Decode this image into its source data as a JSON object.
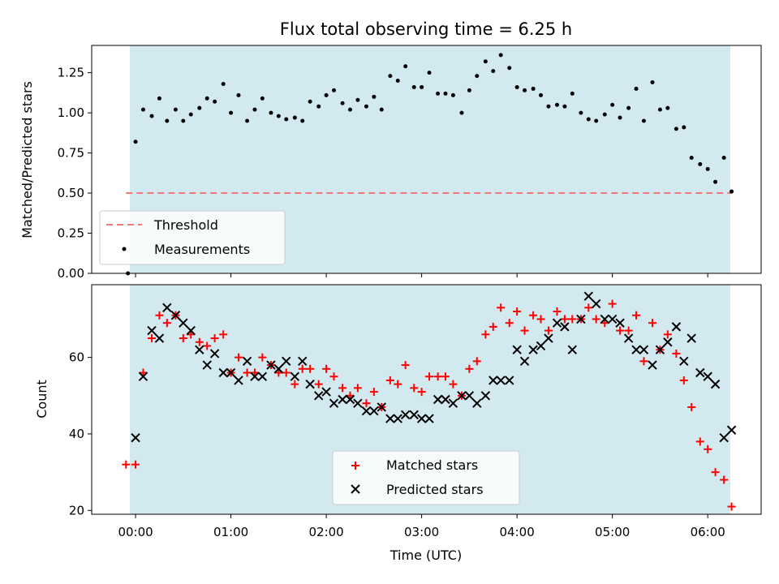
{
  "colors": {
    "observing_band": "#d3e9f0",
    "threshold": "#f07a7a",
    "measurements": "#000000",
    "matched": "#ff0000",
    "predicted": "#000000"
  },
  "chart_data": [
    {
      "type": "scatter",
      "title": "Flux total observing time = 6.25 h",
      "xlabel": "",
      "ylabel": "Matched/Predicted stars",
      "x_unit": "hours since 00:00 UTC",
      "xlim": [
        -0.46,
        6.56
      ],
      "ylim": [
        0,
        1.42
      ],
      "y_ticks": [
        "0.00",
        "0.25",
        "0.50",
        "0.75",
        "1.00",
        "1.25"
      ],
      "observing_band": [
        0.0,
        6.25
      ],
      "legend": {
        "location": "lower left",
        "entries": [
          "Threshold",
          "Measurements"
        ]
      },
      "threshold": {
        "name": "Threshold",
        "y": 0.5,
        "x": [
          -0.1,
          6.25
        ],
        "style": "dashed"
      },
      "series": [
        {
          "name": "Measurements",
          "marker": "dot",
          "x": [
            -0.08,
            0.0,
            0.08,
            0.17,
            0.25,
            0.33,
            0.42,
            0.5,
            0.58,
            0.67,
            0.75,
            0.83,
            0.92,
            1.0,
            1.08,
            1.17,
            1.25,
            1.33,
            1.42,
            1.5,
            1.58,
            1.67,
            1.75,
            1.83,
            1.92,
            2.0,
            2.08,
            2.17,
            2.25,
            2.33,
            2.42,
            2.5,
            2.58,
            2.67,
            2.75,
            2.83,
            2.92,
            3.0,
            3.08,
            3.17,
            3.25,
            3.33,
            3.42,
            3.5,
            3.58,
            3.67,
            3.75,
            3.83,
            3.92,
            4.0,
            4.08,
            4.17,
            4.25,
            4.33,
            4.42,
            4.5,
            4.58,
            4.67,
            4.75,
            4.83,
            4.92,
            5.0,
            5.08,
            5.17,
            5.25,
            5.33,
            5.42,
            5.5,
            5.58,
            5.67,
            5.75,
            5.83,
            5.92,
            6.0,
            6.08,
            6.17,
            6.25
          ],
          "y": [
            0.0,
            0.82,
            1.02,
            0.98,
            1.09,
            0.95,
            1.02,
            0.95,
            0.99,
            1.03,
            1.09,
            1.07,
            1.18,
            1.0,
            1.11,
            0.95,
            1.02,
            1.09,
            1.0,
            0.98,
            0.96,
            0.97,
            0.95,
            1.07,
            1.04,
            1.11,
            1.14,
            1.06,
            1.02,
            1.08,
            1.04,
            1.1,
            1.02,
            1.23,
            1.2,
            1.29,
            1.16,
            1.16,
            1.25,
            1.12,
            1.12,
            1.11,
            1.0,
            1.14,
            1.23,
            1.32,
            1.26,
            1.36,
            1.28,
            1.16,
            1.14,
            1.15,
            1.11,
            1.04,
            1.05,
            1.04,
            1.12,
            1.0,
            0.96,
            0.95,
            0.99,
            1.05,
            0.97,
            1.03,
            1.15,
            0.95,
            1.19,
            1.02,
            1.03,
            0.9,
            0.91,
            0.72,
            0.68,
            0.65,
            0.57,
            0.72,
            0.51
          ]
        }
      ]
    },
    {
      "type": "scatter",
      "title": "",
      "xlabel": "Time (UTC)",
      "ylabel": "Count",
      "x_unit": "hours since 00:00 UTC",
      "xlim": [
        -0.46,
        6.56
      ],
      "ylim": [
        19,
        79
      ],
      "y_ticks": [
        "20",
        "40",
        "60"
      ],
      "x_ticks": [
        "00:00",
        "01:00",
        "02:00",
        "03:00",
        "04:00",
        "05:00",
        "06:00"
      ],
      "observing_band": [
        0.0,
        6.25
      ],
      "legend": {
        "location": "lower center",
        "entries": [
          "Matched stars",
          "Predicted stars"
        ]
      },
      "series": [
        {
          "name": "Matched stars",
          "marker": "plus",
          "x": [
            -0.1,
            0.0,
            0.08,
            0.17,
            0.25,
            0.33,
            0.42,
            0.5,
            0.58,
            0.67,
            0.75,
            0.83,
            0.92,
            1.0,
            1.08,
            1.17,
            1.25,
            1.33,
            1.42,
            1.5,
            1.58,
            1.67,
            1.75,
            1.83,
            1.92,
            2.0,
            2.08,
            2.17,
            2.25,
            2.33,
            2.42,
            2.5,
            2.58,
            2.67,
            2.75,
            2.83,
            2.92,
            3.0,
            3.08,
            3.17,
            3.25,
            3.33,
            3.42,
            3.5,
            3.58,
            3.67,
            3.75,
            3.83,
            3.92,
            4.0,
            4.08,
            4.17,
            4.25,
            4.33,
            4.42,
            4.5,
            4.58,
            4.67,
            4.75,
            4.83,
            4.92,
            5.0,
            5.08,
            5.17,
            5.25,
            5.33,
            5.42,
            5.5,
            5.58,
            5.67,
            5.75,
            5.83,
            5.92,
            6.0,
            6.08,
            6.17,
            6.25
          ],
          "y": [
            32,
            32,
            56,
            65,
            71,
            69,
            71,
            65,
            66,
            64,
            63,
            65,
            66,
            56,
            60,
            56,
            56,
            60,
            58,
            56,
            56,
            53,
            57,
            57,
            53,
            57,
            55,
            52,
            50,
            52,
            48,
            51,
            47,
            54,
            53,
            58,
            52,
            51,
            55,
            55,
            55,
            53,
            50,
            57,
            59,
            66,
            68,
            73,
            69,
            72,
            67,
            71,
            70,
            67,
            72,
            70,
            70,
            70,
            73,
            70,
            69,
            74,
            67,
            67,
            71,
            59,
            69,
            62,
            66,
            61,
            54,
            47,
            38,
            36,
            30,
            28,
            21
          ]
        },
        {
          "name": "Predicted stars",
          "marker": "x",
          "x": [
            0.0,
            0.08,
            0.17,
            0.25,
            0.33,
            0.42,
            0.5,
            0.58,
            0.67,
            0.75,
            0.83,
            0.92,
            1.0,
            1.08,
            1.17,
            1.25,
            1.33,
            1.42,
            1.5,
            1.58,
            1.67,
            1.75,
            1.83,
            1.92,
            2.0,
            2.08,
            2.17,
            2.25,
            2.33,
            2.42,
            2.5,
            2.58,
            2.67,
            2.75,
            2.83,
            2.92,
            3.0,
            3.08,
            3.17,
            3.25,
            3.33,
            3.42,
            3.5,
            3.58,
            3.67,
            3.75,
            3.83,
            3.92,
            4.0,
            4.08,
            4.17,
            4.25,
            4.33,
            4.42,
            4.5,
            4.58,
            4.67,
            4.75,
            4.83,
            4.92,
            5.0,
            5.08,
            5.17,
            5.25,
            5.33,
            5.42,
            5.5,
            5.58,
            5.67,
            5.75,
            5.83,
            5.92,
            6.0,
            6.08,
            6.17,
            6.25
          ],
          "y": [
            39,
            55,
            67,
            65,
            73,
            71,
            69,
            67,
            62,
            58,
            61,
            56,
            56,
            54,
            59,
            55,
            55,
            58,
            57,
            59,
            55,
            59,
            53,
            50,
            51,
            48,
            49,
            49,
            48,
            46,
            46,
            47,
            44,
            44,
            45,
            45,
            44,
            44,
            49,
            49,
            48,
            50,
            50,
            48,
            50,
            54,
            54,
            54,
            62,
            59,
            62,
            63,
            65,
            69,
            68,
            62,
            70,
            76,
            74,
            70,
            70,
            69,
            65,
            62,
            62,
            58,
            62,
            64,
            68,
            59,
            65,
            56,
            55,
            53,
            39,
            41
          ]
        }
      ]
    }
  ]
}
